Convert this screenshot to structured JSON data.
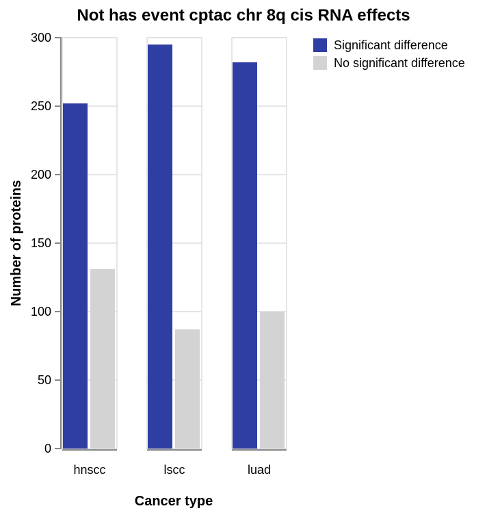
{
  "chart_data": {
    "type": "bar",
    "title": "Not has event cptac chr 8q cis RNA effects",
    "xlabel": "Cancer type",
    "ylabel": "Number of proteins",
    "categories": [
      "hnscc",
      "lscc",
      "luad"
    ],
    "series": [
      {
        "name": "Significant difference",
        "color": "#2f3ea3",
        "values": [
          252,
          295,
          282
        ]
      },
      {
        "name": "No significant difference",
        "color": "#d3d3d3",
        "values": [
          131,
          87,
          100
        ]
      }
    ],
    "ylim": [
      0,
      300
    ],
    "yticks": [
      0,
      50,
      100,
      150,
      200,
      250,
      300
    ],
    "grid": true,
    "legend_position": "top-right"
  }
}
